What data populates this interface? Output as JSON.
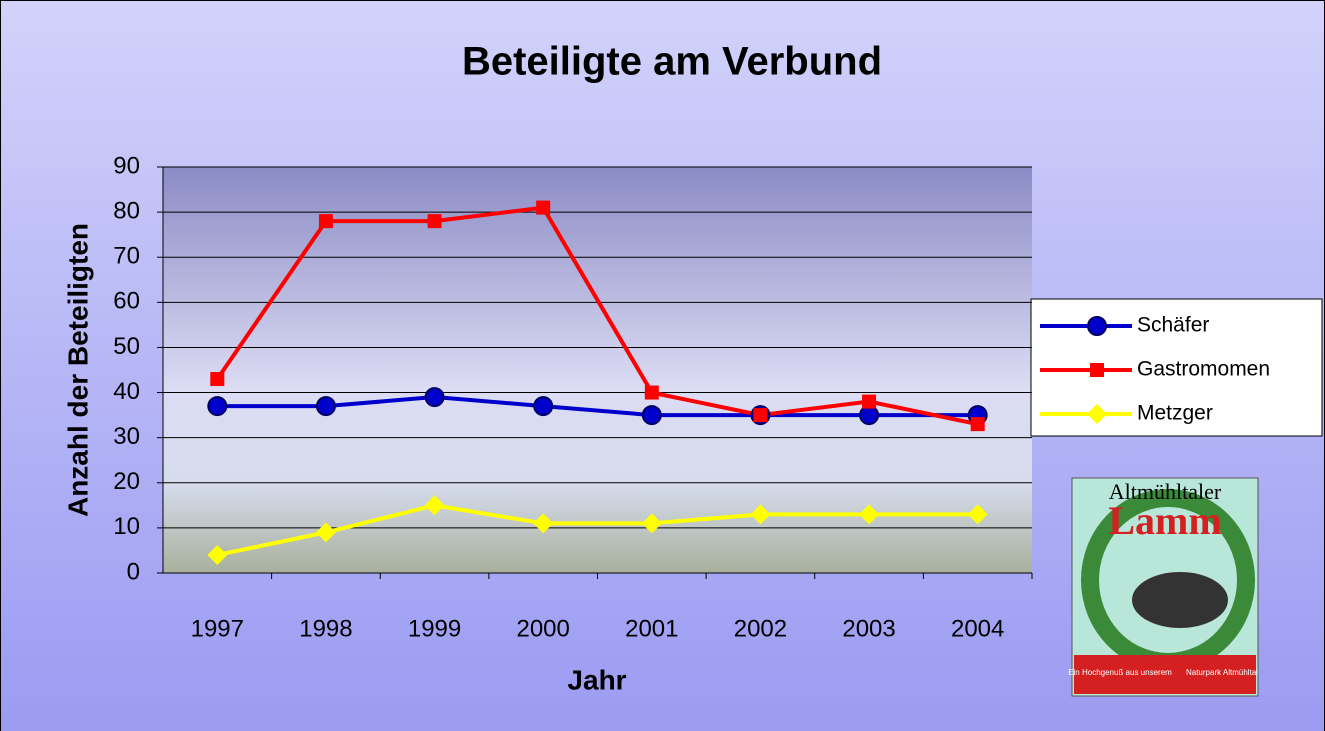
{
  "chart_data": {
    "type": "line",
    "title": "Beteiligte am Verbund",
    "x_label": "Jahr",
    "y_label": "Anzahl der Beteiligten",
    "categories": [
      "1997",
      "1998",
      "1999",
      "2000",
      "2001",
      "2002",
      "2003",
      "2004"
    ],
    "series": [
      {
        "name": "Schäfer",
        "color": "#0000cc",
        "marker": "circle",
        "values": [
          37,
          37,
          39,
          37,
          35,
          35,
          35,
          35
        ]
      },
      {
        "name": "Gastromomen",
        "color": "#ff0000",
        "marker": "square",
        "values": [
          43,
          78,
          78,
          81,
          40,
          35,
          38,
          33
        ]
      },
      {
        "name": "Metzger",
        "color": "#ffff00",
        "marker": "diamond",
        "values": [
          4,
          9,
          15,
          11,
          11,
          13,
          13,
          13
        ]
      }
    ],
    "ylim": [
      0,
      90
    ],
    "yticks": [
      0,
      10,
      20,
      30,
      40,
      50,
      60,
      70,
      80,
      90
    ],
    "grid": true,
    "legend": "right",
    "annotations": [
      "Altmühltaler",
      "Lamm",
      "Ein Hochgenuß aus unserem",
      "Naturpark Altmühltal"
    ]
  }
}
